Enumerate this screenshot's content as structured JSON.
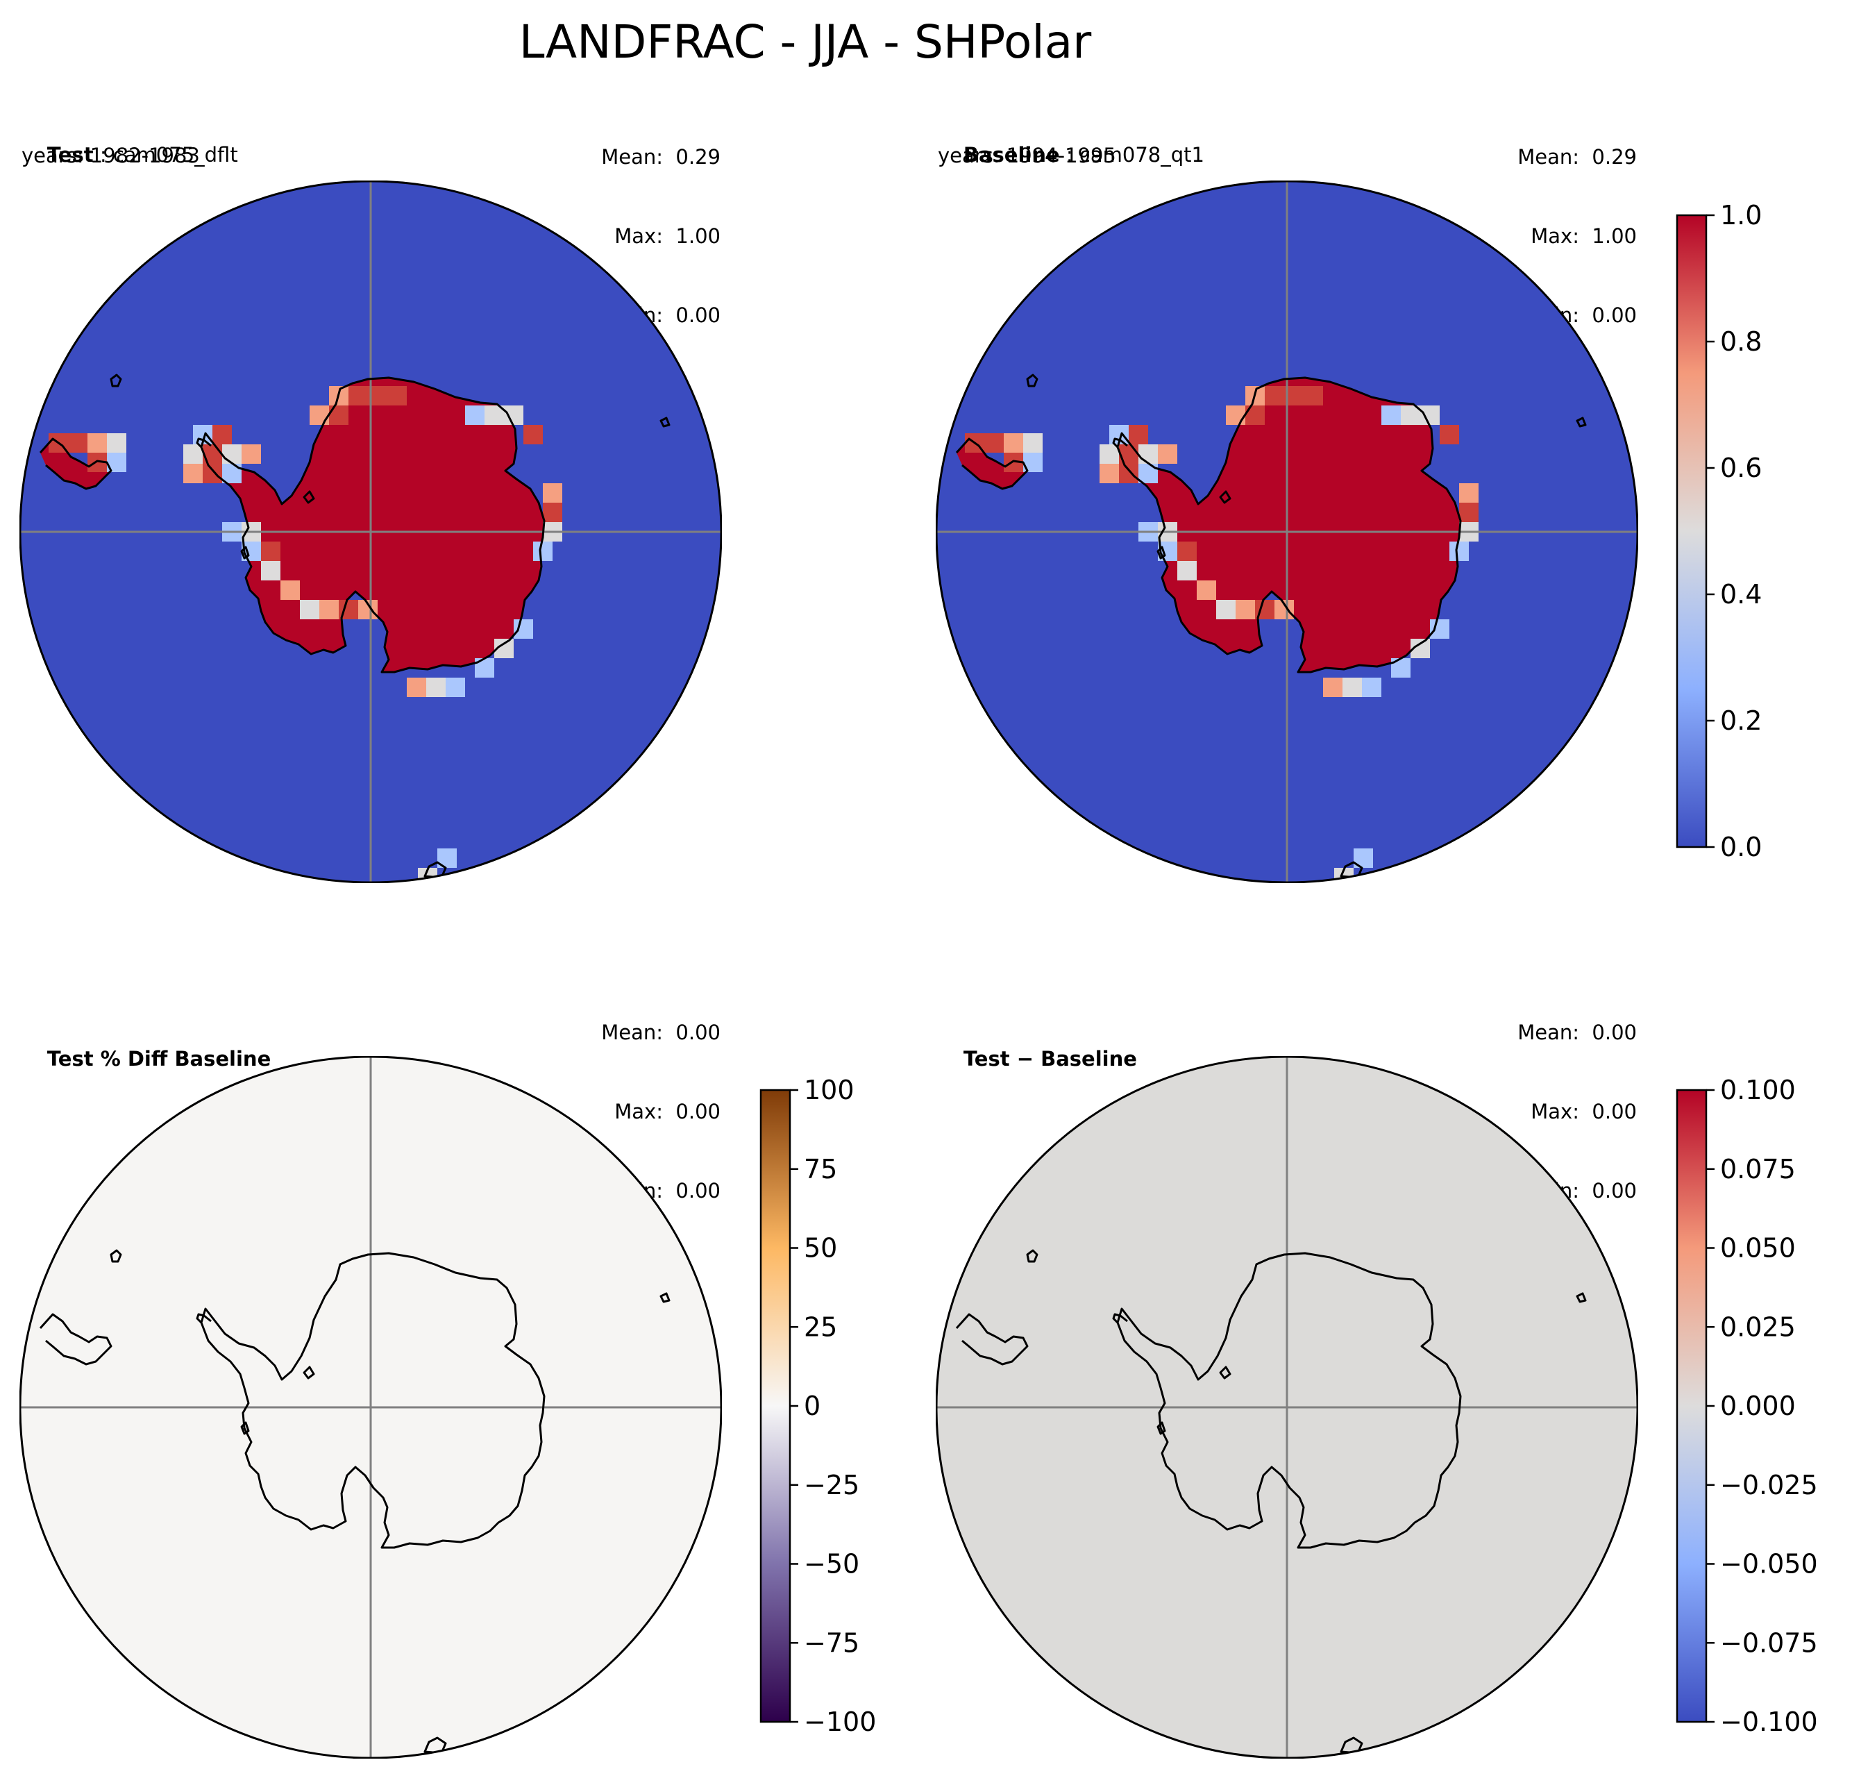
{
  "suptitle": "LANDFRAC - JJA - SHPolar",
  "panels": [
    {
      "id": "test",
      "label_bold": "Test",
      "label_sep": " : ",
      "label_rest": "cam075_dflt",
      "years": "years: 1982-1983",
      "mean": "Mean:  0.29",
      "max": "Max:  1.00",
      "min": "Min:  0.00",
      "fill": "landfrac",
      "ocean_color": "#3b4cc0",
      "land_color": "#b40426"
    },
    {
      "id": "baseline",
      "label_bold": "Baseline",
      "label_sep": " : ",
      "label_rest": "cam078_qt1",
      "years": "years: 1994-1995",
      "mean": "Mean:  0.29",
      "max": "Max:  1.00",
      "min": "Min:  0.00",
      "fill": "landfrac",
      "ocean_color": "#3b4cc0",
      "land_color": "#b40426"
    },
    {
      "id": "pctdiff",
      "label_bold": "Test % Diff Baseline",
      "label_sep": "",
      "label_rest": "",
      "years": "",
      "mean": "Mean:  0.00",
      "max": "Max:  0.00",
      "min": "Min:  0.00",
      "fill": "uniform",
      "uniform_color": "#f6f5f3"
    },
    {
      "id": "diff",
      "label_bold": "Test − Baseline",
      "label_sep": "",
      "label_rest": "",
      "years": "",
      "mean": "Mean:  0.00",
      "max": "Max:  0.00",
      "min": "Min:  0.00",
      "fill": "uniform",
      "uniform_color": "#dcdbd9"
    }
  ],
  "colorbars": [
    {
      "id": "landfrac",
      "colormap": "coolwarm",
      "stops": [
        "#3b4cc0",
        "#8db0fe",
        "#dddcdc",
        "#f49a7b",
        "#b40426"
      ],
      "ticks": [
        "0.0",
        "0.2",
        "0.4",
        "0.6",
        "0.8",
        "1.0"
      ]
    },
    {
      "id": "pctdiff",
      "colormap": "PuOr_r",
      "stops": [
        "#2d004b",
        "#8073ac",
        "#f7f7f7",
        "#fdb863",
        "#7f3b08"
      ],
      "ticks": [
        "−100",
        "−75",
        "−50",
        "−25",
        "0",
        "25",
        "50",
        "75",
        "100"
      ]
    },
    {
      "id": "diff",
      "colormap": "coolwarm",
      "stops": [
        "#3b4cc0",
        "#8db0fe",
        "#dddcdc",
        "#f49a7b",
        "#b40426"
      ],
      "ticks": [
        "−0.100",
        "−0.075",
        "−0.050",
        "−0.025",
        "0.000",
        "0.025",
        "0.050",
        "0.075",
        "0.100"
      ]
    }
  ]
}
